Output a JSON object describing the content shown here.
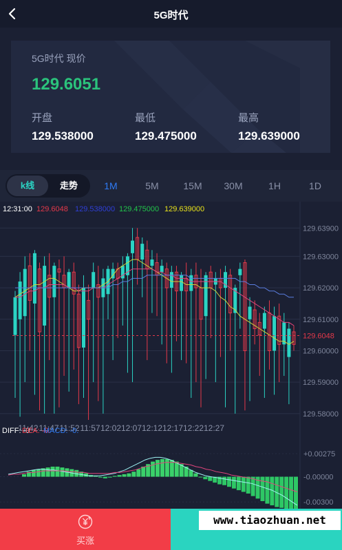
{
  "header": {
    "title": "5G时代"
  },
  "price_card": {
    "label": "5G时代 现价",
    "current_price": "129.6051",
    "stats": [
      {
        "label": "开盘",
        "value": "129.538000"
      },
      {
        "label": "最低",
        "value": "129.475000"
      },
      {
        "label": "最高",
        "value": "129.639000"
      }
    ]
  },
  "chart_tabs": {
    "kline_label": "k线",
    "trend_label": "走势",
    "periods": [
      "1M",
      "5M",
      "15M",
      "30M",
      "1H",
      "1D"
    ],
    "active_period": "1M"
  },
  "colors": {
    "up": "#2bd4c4",
    "down": "#e5394a",
    "accent": "#2f7bf5",
    "price_green": "#2bc37c"
  },
  "chart_data": {
    "type": "candlestick",
    "info_line": {
      "time": "12:31:00",
      "values": [
        {
          "text": "129.6048",
          "color": "#e5394a"
        },
        {
          "text": "129.538000",
          "color": "#2f3fd6"
        },
        {
          "text": "129.475000",
          "color": "#22c44a"
        },
        {
          "text": "129.639000",
          "color": "#e8e21b"
        }
      ]
    },
    "y_ticks": [
      "129.63900",
      "129.63000",
      "129.62000",
      "129.61000",
      "129.60000",
      "129.59000",
      "129.58000"
    ],
    "y_values": [
      129.639,
      129.63,
      129.62,
      129.61,
      129.6,
      129.59,
      129.58
    ],
    "ylim": [
      129.578,
      129.643
    ],
    "x_ticks": [
      "11:42",
      "11:47",
      "11:52",
      "11:57",
      "12:02",
      "12:07",
      "12:12",
      "12:17",
      "12:22",
      "12:27"
    ],
    "last_price_label": "129.6048",
    "last_price": 129.6048,
    "candles": [
      {
        "o": 129.605,
        "c": 129.617,
        "h": 129.619,
        "l": 129.585
      },
      {
        "o": 129.61,
        "c": 129.622,
        "h": 129.625,
        "l": 129.579
      },
      {
        "o": 129.611,
        "c": 129.626,
        "h": 129.63,
        "l": 129.59
      },
      {
        "o": 129.627,
        "c": 129.616,
        "h": 129.631,
        "l": 129.6
      },
      {
        "o": 129.615,
        "c": 129.631,
        "h": 129.632,
        "l": 129.586
      },
      {
        "o": 129.626,
        "c": 129.606,
        "h": 129.628,
        "l": 129.581
      },
      {
        "o": 129.608,
        "c": 129.627,
        "h": 129.63,
        "l": 129.58
      },
      {
        "o": 129.624,
        "c": 129.617,
        "h": 129.631,
        "l": 129.597
      },
      {
        "o": 129.617,
        "c": 129.627,
        "h": 129.628,
        "l": 129.58
      },
      {
        "o": 129.626,
        "c": 129.625,
        "h": 129.629,
        "l": 129.582
      },
      {
        "o": 129.624,
        "c": 129.62,
        "h": 129.63,
        "l": 129.592
      },
      {
        "o": 129.62,
        "c": 129.625,
        "h": 129.626,
        "l": 129.587
      },
      {
        "o": 129.625,
        "c": 129.618,
        "h": 129.628,
        "l": 129.594
      },
      {
        "o": 129.618,
        "c": 129.601,
        "h": 129.621,
        "l": 129.583
      },
      {
        "o": 129.601,
        "c": 129.62,
        "h": 129.624,
        "l": 129.585
      },
      {
        "o": 129.616,
        "c": 129.61,
        "h": 129.621,
        "l": 129.578
      },
      {
        "o": 129.62,
        "c": 129.625,
        "h": 129.628,
        "l": 129.59
      },
      {
        "o": 129.621,
        "c": 129.617,
        "h": 129.627,
        "l": 129.584
      },
      {
        "o": 129.617,
        "c": 129.623,
        "h": 129.626,
        "l": 129.58
      },
      {
        "o": 129.618,
        "c": 129.626,
        "h": 129.627,
        "l": 129.61
      },
      {
        "o": 129.623,
        "c": 129.626,
        "h": 129.628,
        "l": 129.597
      },
      {
        "o": 129.626,
        "c": 129.623,
        "h": 129.628,
        "l": 129.604
      },
      {
        "o": 129.623,
        "c": 129.627,
        "h": 129.63,
        "l": 129.608
      },
      {
        "o": 129.624,
        "c": 129.63,
        "h": 129.631,
        "l": 129.593
      },
      {
        "o": 129.631,
        "c": 129.635,
        "h": 129.639,
        "l": 129.59
      },
      {
        "o": 129.636,
        "c": 129.629,
        "h": 129.639,
        "l": 129.621
      },
      {
        "o": 129.629,
        "c": 129.634,
        "h": 129.636,
        "l": 129.617
      },
      {
        "o": 129.632,
        "c": 129.626,
        "h": 129.635,
        "l": 129.597
      },
      {
        "o": 129.627,
        "c": 129.629,
        "h": 129.632,
        "l": 129.612
      },
      {
        "o": 129.628,
        "c": 129.624,
        "h": 129.631,
        "l": 129.611
      },
      {
        "o": 129.625,
        "c": 129.627,
        "h": 129.629,
        "l": 129.602
      },
      {
        "o": 129.626,
        "c": 129.62,
        "h": 129.628,
        "l": 129.596
      },
      {
        "o": 129.62,
        "c": 129.625,
        "h": 129.627,
        "l": 129.593
      },
      {
        "o": 129.625,
        "c": 129.619,
        "h": 129.627,
        "l": 129.603
      },
      {
        "o": 129.619,
        "c": 129.624,
        "h": 129.625,
        "l": 129.597
      },
      {
        "o": 129.623,
        "c": 129.619,
        "h": 129.628,
        "l": 129.596
      },
      {
        "o": 129.619,
        "c": 129.624,
        "h": 129.626,
        "l": 129.585
      },
      {
        "o": 129.624,
        "c": 129.62,
        "h": 129.628,
        "l": 129.59
      },
      {
        "o": 129.62,
        "c": 129.61,
        "h": 129.626,
        "l": 129.582
      },
      {
        "o": 129.611,
        "c": 129.624,
        "h": 129.625,
        "l": 129.591
      },
      {
        "o": 129.625,
        "c": 129.62,
        "h": 129.627,
        "l": 129.604
      },
      {
        "o": 129.621,
        "c": 129.623,
        "h": 129.625,
        "l": 129.59
      },
      {
        "o": 129.623,
        "c": 129.62,
        "h": 129.626,
        "l": 129.598
      },
      {
        "o": 129.62,
        "c": 129.625,
        "h": 129.627,
        "l": 129.582
      },
      {
        "o": 129.624,
        "c": 129.612,
        "h": 129.626,
        "l": 129.6
      },
      {
        "o": 129.612,
        "c": 129.62,
        "h": 129.621,
        "l": 129.58
      },
      {
        "o": 129.624,
        "c": 129.626,
        "h": 129.628,
        "l": 129.607
      },
      {
        "o": 129.628,
        "c": 129.6,
        "h": 129.629,
        "l": 129.581
      },
      {
        "o": 129.61,
        "c": 129.614,
        "h": 129.617,
        "l": 129.584
      },
      {
        "o": 129.613,
        "c": 129.607,
        "h": 129.616,
        "l": 129.602
      },
      {
        "o": 129.609,
        "c": 129.605,
        "h": 129.612,
        "l": 129.592
      },
      {
        "o": 129.607,
        "c": 129.612,
        "h": 129.614,
        "l": 129.585
      },
      {
        "o": 129.612,
        "c": 129.6,
        "h": 129.616,
        "l": 129.594
      },
      {
        "o": 129.6,
        "c": 129.611,
        "h": 129.614,
        "l": 129.586
      },
      {
        "o": 129.611,
        "c": 129.602,
        "h": 129.615,
        "l": 129.59
      },
      {
        "o": 129.602,
        "c": 129.609,
        "h": 129.612,
        "l": 129.592
      },
      {
        "o": 129.598,
        "c": 129.607,
        "h": 129.609,
        "l": 129.583
      },
      {
        "o": 129.606,
        "c": 129.602,
        "h": 129.608,
        "l": 129.6
      }
    ],
    "ma_lines": [
      {
        "color": "#cfd13a",
        "values": [
          129.617,
          129.618,
          129.619,
          129.62,
          129.621,
          129.621,
          129.622,
          129.623,
          129.623,
          129.622,
          129.621,
          129.62,
          129.619,
          129.619,
          129.62,
          129.62,
          129.62,
          129.62,
          129.621,
          129.622,
          129.624,
          129.626,
          129.627,
          129.628,
          129.629,
          129.629,
          129.628,
          129.627,
          129.626,
          129.625,
          129.624,
          129.623,
          129.622,
          129.622,
          129.622,
          129.621,
          129.621,
          129.621,
          129.62,
          129.62,
          129.62,
          129.619,
          129.617,
          129.616,
          129.614,
          129.613,
          129.611,
          129.61,
          129.609,
          129.608,
          129.607,
          129.606,
          129.605,
          129.604,
          129.603,
          129.603,
          129.602,
          129.603
        ]
      },
      {
        "color": "#e0457c",
        "values": [
          129.617,
          129.617,
          129.618,
          129.619,
          129.619,
          129.62,
          129.62,
          129.621,
          129.621,
          129.621,
          129.621,
          129.62,
          129.62,
          129.619,
          129.619,
          129.619,
          129.62,
          129.62,
          129.62,
          129.621,
          129.622,
          129.623,
          129.624,
          129.625,
          129.626,
          129.626,
          129.626,
          129.626,
          129.626,
          129.625,
          129.625,
          129.624,
          129.624,
          129.623,
          129.623,
          129.623,
          129.622,
          129.622,
          129.622,
          129.622,
          129.622,
          129.622,
          129.622,
          129.621,
          129.62,
          129.619,
          129.618,
          129.617,
          129.616,
          129.615,
          129.614,
          129.613,
          129.612,
          129.611,
          129.61,
          129.609,
          129.609,
          129.608
        ]
      },
      {
        "color": "#5b7de0",
        "values": [
          129.62,
          129.62,
          129.62,
          129.62,
          129.62,
          129.62,
          129.62,
          129.62,
          129.62,
          129.62,
          129.62,
          129.62,
          129.62,
          129.62,
          129.62,
          129.62,
          129.62,
          129.62,
          129.62,
          129.62,
          129.621,
          129.621,
          129.622,
          129.622,
          129.623,
          129.623,
          129.623,
          129.624,
          129.624,
          129.624,
          129.624,
          129.624,
          129.624,
          129.624,
          129.624,
          129.624,
          129.623,
          129.623,
          129.623,
          129.623,
          129.623,
          129.623,
          129.623,
          129.623,
          129.623,
          129.623,
          129.622,
          129.622,
          129.621,
          129.621,
          129.62,
          129.62,
          129.619,
          129.619,
          129.618,
          129.618,
          129.617,
          129.617
        ]
      }
    ],
    "macd": {
      "legend": [
        {
          "text": "DIFF: -0.",
          "color": "#ffffff"
        },
        {
          "text": "DEA: -0.",
          "color": "#e5394a"
        },
        {
          "text": "MACD: -0.",
          "color": "#2f7bf5"
        }
      ],
      "y_ticks": [
        "+0.00275",
        "-0.00000",
        "-0.00300"
      ],
      "y_values": [
        0.00275,
        0.0,
        -0.003
      ],
      "ylim": [
        -0.0038,
        0.0034
      ],
      "histogram": [
        0.0003,
        0.0006,
        0.0008,
        0.0009,
        0.001,
        0.0011,
        0.0012,
        0.0012,
        0.0011,
        0.001,
        0.0009,
        0.0008,
        0.0006,
        0.0004,
        0.0002,
        0.0001,
        -0.0001,
        -0.0002,
        -0.0001,
        0.0001,
        0.0002,
        0.0003,
        0.0004,
        0.0006,
        0.0009,
        0.0012,
        0.0015,
        0.0018,
        0.002,
        0.0021,
        0.0021,
        0.002,
        0.0018,
        0.0015,
        0.0012,
        0.0008,
        0.0004,
        0.0,
        -0.0003,
        -0.0005,
        -0.0007,
        -0.0009,
        -0.001,
        -0.0012,
        -0.0014,
        -0.0016,
        -0.0018,
        -0.002,
        -0.0023,
        -0.0026,
        -0.0029,
        -0.0032,
        -0.0034,
        -0.0036,
        -0.0037,
        -0.0038,
        -0.0038,
        -0.0038
      ],
      "diff": [
        0.0003,
        0.0004,
        0.0005,
        0.0006,
        0.0007,
        0.0008,
        0.0009,
        0.0009,
        0.0008,
        0.0008,
        0.0007,
        0.0006,
        0.0005,
        0.0004,
        0.0003,
        0.0002,
        0.0001,
        0.0001,
        0.0001,
        0.0002,
        0.0003,
        0.0004,
        0.0006,
        0.0008,
        0.0011,
        0.0014,
        0.0017,
        0.002,
        0.0022,
        0.0023,
        0.0023,
        0.0022,
        0.002,
        0.0017,
        0.0014,
        0.0011,
        0.0008,
        0.0005,
        0.0003,
        0.0001,
        0.0,
        -0.0001,
        -0.0002,
        -0.0003,
        -0.0004,
        -0.0005,
        -0.0006,
        -0.0007,
        -0.0008,
        -0.001,
        -0.0012,
        -0.0014,
        -0.0016,
        -0.0019,
        -0.0022,
        -0.0026,
        -0.003,
        -0.0034
      ],
      "dea": [
        0.0002,
        0.0003,
        0.0003,
        0.0004,
        0.0005,
        0.0005,
        0.0006,
        0.0007,
        0.0007,
        0.0007,
        0.0007,
        0.0007,
        0.0006,
        0.0006,
        0.0005,
        0.0005,
        0.0004,
        0.0004,
        0.0004,
        0.0004,
        0.0004,
        0.0005,
        0.0005,
        0.0006,
        0.0007,
        0.0008,
        0.001,
        0.0012,
        0.0013,
        0.0015,
        0.0016,
        0.0017,
        0.0017,
        0.0017,
        0.0016,
        0.0015,
        0.0014,
        0.0012,
        0.0011,
        0.0009,
        0.0008,
        0.0006,
        0.0005,
        0.0004,
        0.0002,
        0.0001,
        0.0,
        -0.0001,
        -0.0002,
        -0.0004,
        -0.0005,
        -0.0006,
        -0.0008,
        -0.001,
        -0.0012,
        -0.0014,
        -0.0016,
        -0.0018
      ]
    }
  },
  "actions": {
    "buy_label": "买涨",
    "buy_icon": "yen-up-icon",
    "sell_icon": "yen-down-icon"
  },
  "watermark": "www.tiaozhuan.net"
}
